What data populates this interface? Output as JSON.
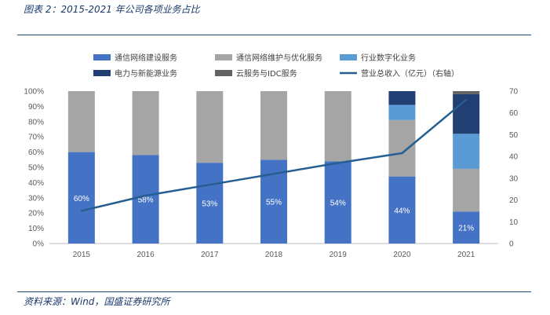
{
  "header": {
    "title": "图表 2：2015-2021 年公司各项业务占比"
  },
  "footer": {
    "source": "资料来源：Wind，国盛证券研究所"
  },
  "chart_data": {
    "type": "bar",
    "stacked": true,
    "categories": [
      "2015",
      "2016",
      "2017",
      "2018",
      "2019",
      "2020",
      "2021"
    ],
    "series": [
      {
        "name": "通信网络建设服务",
        "color": "#4472c4",
        "axis": "left",
        "values": [
          60,
          58,
          53,
          55,
          54,
          44,
          21
        ],
        "labels": [
          "60%",
          "58%",
          "53%",
          "55%",
          "54%",
          "44%",
          "21%"
        ]
      },
      {
        "name": "通信网络维护与优化服务",
        "color": "#a5a5a5",
        "axis": "left",
        "values": [
          40,
          42,
          47,
          45,
          46,
          37,
          28
        ]
      },
      {
        "name": "行业数字化业务",
        "color": "#5b9bd5",
        "axis": "left",
        "values": [
          0,
          0,
          0,
          0,
          0,
          10,
          23
        ]
      },
      {
        "name": "电力与新能源业务",
        "color": "#223f74",
        "axis": "left",
        "values": [
          0,
          0,
          0,
          0,
          0,
          9,
          26
        ]
      },
      {
        "name": "云服务与IDC服务",
        "color": "#636363",
        "axis": "left",
        "values": [
          0,
          0,
          0,
          0,
          0,
          0,
          2
        ]
      }
    ],
    "line": {
      "name": "营业总收入（亿元）（右轴）",
      "color": "#255e91",
      "axis": "right",
      "values": [
        15,
        22,
        27,
        32,
        37,
        41.5,
        66
      ]
    },
    "yAxisLeft": {
      "min": 0,
      "max": 100,
      "step": 10,
      "ticks": [
        "0%",
        "10%",
        "20%",
        "30%",
        "40%",
        "50%",
        "60%",
        "70%",
        "80%",
        "90%",
        "100%"
      ]
    },
    "yAxisRight": {
      "min": 0,
      "max": 70,
      "step": 10,
      "ticks": [
        "0",
        "10",
        "20",
        "30",
        "40",
        "50",
        "60",
        "70"
      ]
    },
    "legend": {
      "position": "top"
    },
    "grid": false
  }
}
